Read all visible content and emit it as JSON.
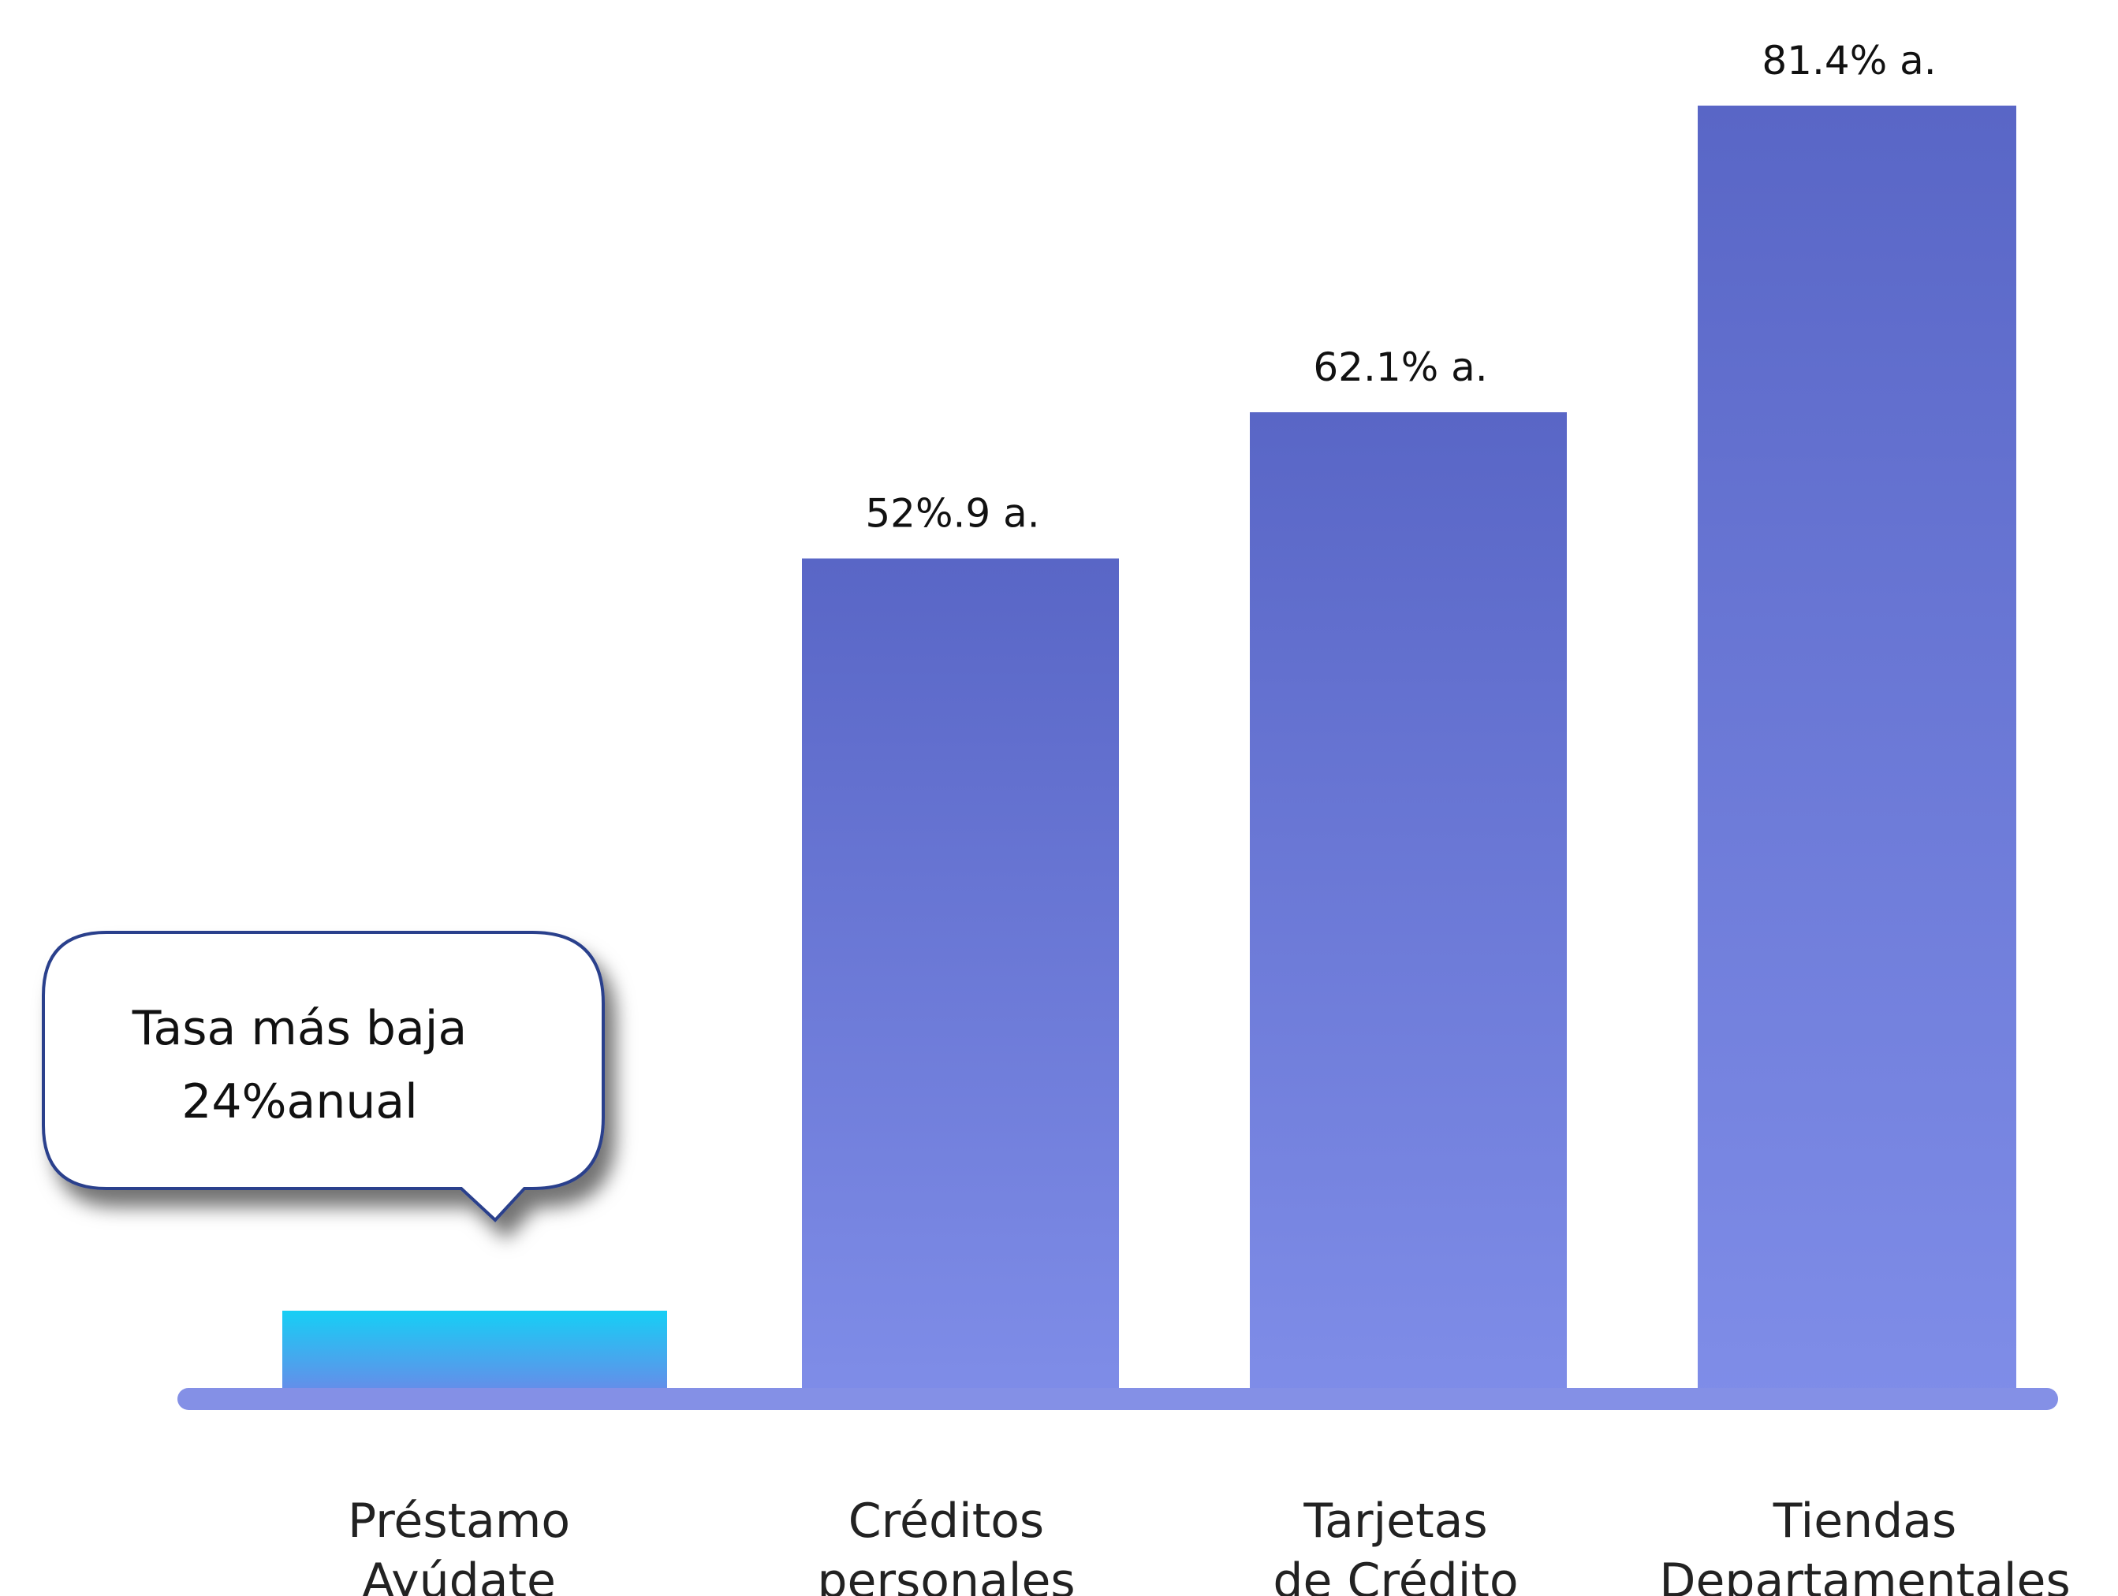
{
  "chart_data": {
    "type": "bar",
    "categories": [
      [
        "Préstamo",
        "Ayúdate"
      ],
      [
        "Créditos",
        "personales"
      ],
      [
        "Tarjetas",
        "de Crédito"
      ],
      [
        "Tiendas",
        "Departamentales"
      ]
    ],
    "values": [
      24,
      52.9,
      62.1,
      81.4
    ],
    "data_labels": [
      "",
      "52%.9 a.",
      "62.1% a.",
      "81.4% a."
    ],
    "ylim": [
      0,
      81.4
    ],
    "grid": false,
    "legend": "none",
    "colors": {
      "highlight_top": "#16CFF5",
      "highlight_bottom": "#6E86E8",
      "bar_top": "#5966C6",
      "bar_bottom": "#7F8DE8",
      "baseline": "#8490E6"
    },
    "callout": {
      "line1": "Tasa más baja",
      "line2": "24%anual"
    }
  }
}
